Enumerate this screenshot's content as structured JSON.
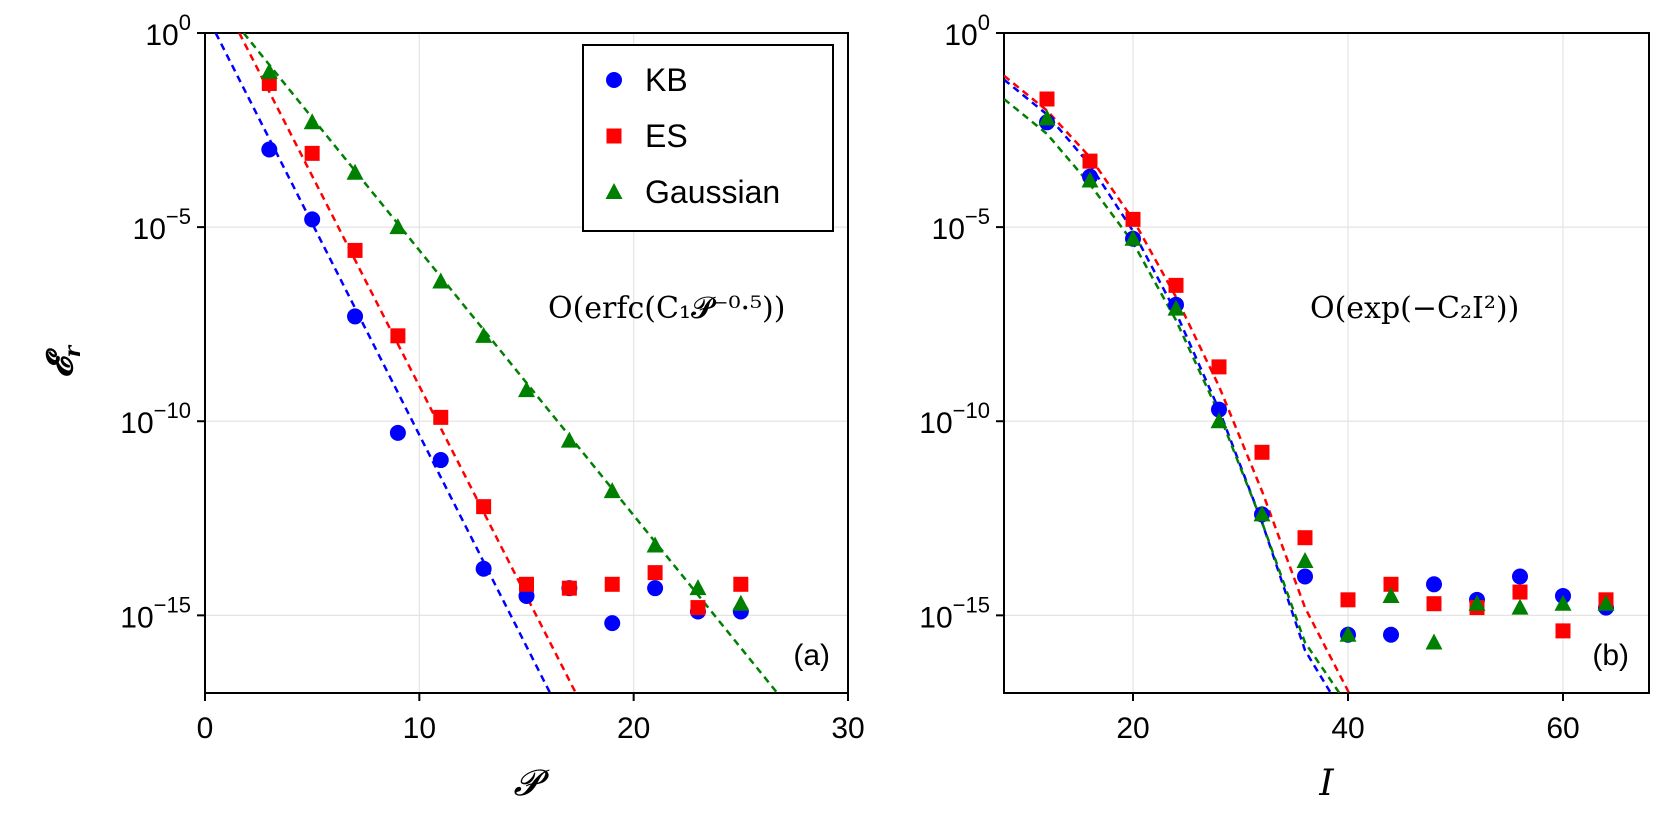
{
  "chart_data": [
    {
      "type": "scatter",
      "panel_label": "(a)",
      "xlabel": "𝓟",
      "ylabel": "𝓔",
      "ylabel_sub": "r",
      "xlim": [
        0,
        30
      ],
      "ylim_log10": [
        -17,
        0
      ],
      "yscale": "log",
      "x_ticks": [
        0,
        10,
        20,
        30
      ],
      "x_tick_labels": [
        "0",
        "10",
        "20",
        "30"
      ],
      "y_ticks": [
        0,
        -5,
        -10,
        -15
      ],
      "y_tick_labels": [
        "0",
        "−5",
        "−10",
        "−15"
      ],
      "y_tick_base": "10",
      "grid": true,
      "annotation": "O(erfc(C₁𝓟⁻⁰·⁵))",
      "series": [
        {
          "name": "KB",
          "marker": "circle",
          "color": "#0000ff",
          "x": [
            3,
            5,
            7,
            9,
            11,
            13,
            15,
            17,
            19,
            21,
            23,
            25
          ],
          "log10_y": [
            -3.0,
            -4.8,
            -7.3,
            -10.3,
            -11.0,
            -13.8,
            -14.5,
            -14.3,
            -15.2,
            -14.3,
            -14.9,
            -14.9
          ]
        },
        {
          "name": "ES",
          "marker": "square",
          "color": "#ff0000",
          "x": [
            3,
            5,
            7,
            9,
            11,
            13,
            15,
            17,
            19,
            21,
            23,
            25
          ],
          "log10_y": [
            -1.3,
            -3.1,
            -5.6,
            -7.8,
            -9.9,
            -12.2,
            -14.2,
            -14.3,
            -14.2,
            -13.9,
            -14.8,
            -14.2
          ]
        },
        {
          "name": "Gaussian",
          "marker": "triangle",
          "color": "#008000",
          "x": [
            3,
            5,
            7,
            9,
            11,
            13,
            15,
            17,
            19,
            21,
            23,
            25
          ],
          "log10_y": [
            -1.0,
            -2.3,
            -3.6,
            -5.0,
            -6.4,
            -7.8,
            -9.2,
            -10.5,
            -11.8,
            -13.2,
            -14.3,
            -14.7
          ]
        }
      ],
      "fit_lines": [
        {
          "name": "KB fit",
          "color": "#0000ff",
          "x": [
            0.5,
            16.1
          ],
          "log10_y": [
            0.0,
            -17.0
          ]
        },
        {
          "name": "ES fit",
          "color": "#ff0000",
          "x": [
            1.6,
            17.3
          ],
          "log10_y": [
            0.0,
            -17.0
          ]
        },
        {
          "name": "Gaussian fit",
          "color": "#008000",
          "x": [
            1.8,
            26.7
          ],
          "log10_y": [
            0.0,
            -17.0
          ]
        }
      ],
      "legend": {
        "placement": "top-right",
        "entries": [
          "KB",
          "ES",
          "Gaussian"
        ]
      }
    },
    {
      "type": "scatter",
      "panel_label": "(b)",
      "xlabel": "I",
      "xlim": [
        8,
        68
      ],
      "ylim_log10": [
        -17,
        0
      ],
      "yscale": "log",
      "x_ticks": [
        20,
        40,
        60
      ],
      "x_tick_labels": [
        "20",
        "40",
        "60"
      ],
      "y_ticks": [
        0,
        -5,
        -10,
        -15
      ],
      "y_tick_labels": [
        "0",
        "−5",
        "−10",
        "−15"
      ],
      "y_tick_base": "10",
      "grid": true,
      "annotation": "O(exp(−C₂I²))",
      "series": [
        {
          "name": "KB",
          "marker": "circle",
          "color": "#0000ff",
          "x": [
            12,
            16,
            20,
            24,
            28,
            32,
            36,
            40,
            44,
            48,
            52,
            56,
            60,
            64
          ],
          "log10_y": [
            -2.3,
            -3.7,
            -5.3,
            -7.0,
            -9.7,
            -12.4,
            -14.0,
            -15.5,
            -15.5,
            -14.2,
            -14.6,
            -14.0,
            -14.5,
            -14.8
          ]
        },
        {
          "name": "ES",
          "marker": "square",
          "color": "#ff0000",
          "x": [
            12,
            16,
            20,
            24,
            28,
            32,
            36,
            40,
            44,
            48,
            52,
            56,
            60,
            64
          ],
          "log10_y": [
            -1.7,
            -3.3,
            -4.8,
            -6.5,
            -8.6,
            -10.8,
            -13.0,
            -14.6,
            -14.2,
            -14.7,
            -14.8,
            -14.4,
            -15.4,
            -14.6
          ]
        },
        {
          "name": "Gaussian",
          "marker": "triangle",
          "color": "#008000",
          "x": [
            12,
            16,
            20,
            24,
            28,
            32,
            36,
            40,
            44,
            48,
            52,
            56,
            60,
            64
          ],
          "log10_y": [
            -2.2,
            -3.8,
            -5.3,
            -7.1,
            -10.0,
            -12.4,
            -13.6,
            -15.5,
            -14.5,
            -15.7,
            -14.7,
            -14.8,
            -14.7,
            -14.7
          ]
        }
      ],
      "fit_lines": [
        {
          "name": "KB fit",
          "color": "#0000ff",
          "x": [
            8,
            12,
            16,
            20,
            24,
            28,
            32,
            36,
            38.4
          ],
          "log10_y": [
            -1.2,
            -2.1,
            -3.4,
            -5.1,
            -7.2,
            -9.7,
            -12.6,
            -15.9,
            -17.0
          ]
        },
        {
          "name": "ES fit",
          "color": "#ff0000",
          "x": [
            8,
            12,
            16,
            20,
            24,
            28,
            32,
            36,
            40.1
          ],
          "log10_y": [
            -1.1,
            -2.0,
            -3.2,
            -4.8,
            -6.8,
            -9.1,
            -11.8,
            -14.8,
            -17.0
          ]
        },
        {
          "name": "Gaussian fit",
          "color": "#008000",
          "x": [
            8,
            12,
            16,
            20,
            24,
            28,
            32,
            36,
            39.2
          ],
          "log10_y": [
            -1.7,
            -2.6,
            -3.9,
            -5.4,
            -7.4,
            -9.8,
            -12.6,
            -15.7,
            -17.0
          ]
        }
      ]
    }
  ]
}
